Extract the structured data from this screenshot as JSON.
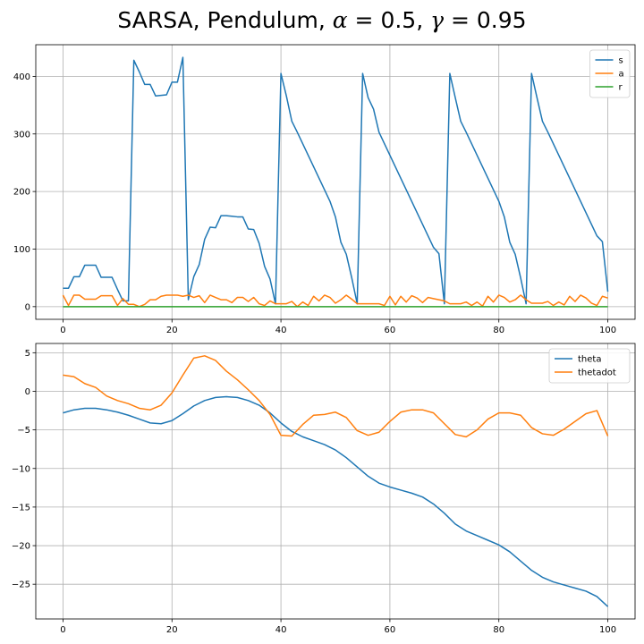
{
  "figure": {
    "title_prefix": "SARSA, Pendulum, ",
    "alpha_symbol": "α",
    "alpha_value": " = 0.5, ",
    "gamma_symbol": "γ",
    "gamma_value": " = 0.95"
  },
  "chart_data": [
    {
      "type": "line",
      "title": "",
      "xlabel": "",
      "ylabel": "",
      "xlim": [
        -5,
        105
      ],
      "ylim": [
        -22,
        455
      ],
      "xticks": [
        0,
        20,
        40,
        60,
        80,
        100
      ],
      "yticks": [
        0,
        100,
        200,
        300,
        400
      ],
      "grid": true,
      "legend_position": "top-right",
      "x": [
        0,
        1,
        2,
        3,
        4,
        5,
        6,
        7,
        8,
        9,
        10,
        11,
        12,
        13,
        14,
        15,
        16,
        17,
        18,
        19,
        20,
        21,
        22,
        23,
        24,
        25,
        26,
        27,
        28,
        29,
        30,
        31,
        32,
        33,
        34,
        35,
        36,
        37,
        38,
        39,
        40,
        41,
        42,
        43,
        44,
        45,
        46,
        47,
        48,
        49,
        50,
        51,
        52,
        53,
        54,
        55,
        56,
        57,
        58,
        59,
        60,
        61,
        62,
        63,
        64,
        65,
        66,
        67,
        68,
        69,
        70,
        71,
        72,
        73,
        74,
        75,
        76,
        77,
        78,
        79,
        80,
        81,
        82,
        83,
        84,
        85,
        86,
        87,
        88,
        89,
        90,
        91,
        92,
        93,
        94,
        95,
        96,
        97,
        98,
        99,
        100
      ],
      "series": [
        {
          "name": "s",
          "color": "#1f77b4",
          "values": [
            32,
            32,
            52,
            52,
            72,
            72,
            72,
            51,
            51,
            51,
            30,
            10,
            10,
            428,
            408,
            386,
            386,
            366,
            367,
            368,
            390,
            390,
            433,
            12,
            52,
            73,
            117,
            138,
            137,
            158,
            158,
            157,
            156,
            156,
            135,
            134,
            110,
            70,
            48,
            5,
            405,
            366,
            322,
            303,
            283,
            263,
            243,
            223,
            203,
            183,
            156,
            112,
            91,
            50,
            5,
            405,
            363,
            343,
            303,
            283,
            263,
            243,
            223,
            203,
            183,
            163,
            143,
            123,
            103,
            92,
            5,
            405,
            363,
            322,
            303,
            283,
            263,
            243,
            223,
            203,
            183,
            156,
            112,
            91,
            50,
            5,
            405,
            363,
            322,
            303,
            283,
            263,
            243,
            223,
            203,
            183,
            163,
            143,
            123,
            113,
            26
          ]
        },
        {
          "name": "a",
          "color": "#ff7f0e",
          "values": [
            20,
            2,
            20,
            20,
            13,
            13,
            13,
            19,
            19,
            19,
            2,
            14,
            4,
            4,
            0,
            4,
            12,
            12,
            18,
            20,
            20,
            20,
            18,
            20,
            16,
            19,
            7,
            20,
            16,
            12,
            12,
            7,
            16,
            16,
            9,
            16,
            5,
            2,
            10,
            5,
            5,
            5,
            9,
            0,
            8,
            2,
            18,
            10,
            20,
            16,
            6,
            12,
            20,
            13,
            5,
            5,
            5,
            5,
            5,
            2,
            18,
            3,
            18,
            8,
            19,
            15,
            7,
            16,
            14,
            12,
            10,
            5,
            5,
            5,
            8,
            2,
            8,
            1,
            18,
            8,
            20,
            16,
            8,
            12,
            20,
            12,
            6,
            6,
            6,
            9,
            2,
            8,
            3,
            18,
            9,
            20,
            15,
            6,
            2,
            18,
            15
          ]
        },
        {
          "name": "r",
          "color": "#2ca02c",
          "values": [
            0,
            0,
            0,
            0,
            0,
            0,
            0,
            0,
            0,
            0,
            0,
            0,
            0,
            0,
            0,
            0,
            0,
            0,
            0,
            0,
            0,
            0,
            0,
            0,
            0,
            0,
            0,
            0,
            0,
            0,
            0,
            0,
            0,
            0,
            0,
            0,
            0,
            0,
            0,
            0,
            0,
            0,
            0,
            0,
            0,
            0,
            0,
            0,
            0,
            0,
            0,
            0,
            0,
            0,
            0,
            0,
            0,
            0,
            0,
            0,
            0,
            0,
            0,
            0,
            0,
            0,
            0,
            0,
            0,
            0,
            0,
            0,
            0,
            0,
            0,
            0,
            0,
            0,
            0,
            0,
            0,
            0,
            0,
            0,
            0,
            0,
            0,
            0,
            0,
            0,
            0,
            0,
            0,
            0,
            0,
            0,
            0,
            0,
            0,
            0,
            0
          ]
        }
      ]
    },
    {
      "type": "line",
      "title": "",
      "xlabel": "",
      "ylabel": "",
      "xlim": [
        -5,
        105
      ],
      "ylim": [
        -29.5,
        6.2
      ],
      "xticks": [
        0,
        20,
        40,
        60,
        80,
        100
      ],
      "yticks": [
        5,
        0,
        -5,
        -10,
        -15,
        -20,
        -25
      ],
      "grid": true,
      "legend_position": "top-right",
      "x": [
        0,
        2,
        4,
        6,
        8,
        10,
        12,
        14,
        16,
        18,
        20,
        22,
        24,
        26,
        28,
        30,
        32,
        34,
        36,
        38,
        40,
        42,
        44,
        46,
        48,
        50,
        52,
        54,
        56,
        58,
        60,
        62,
        64,
        66,
        68,
        70,
        72,
        74,
        76,
        78,
        80,
        82,
        84,
        86,
        88,
        90,
        92,
        94,
        96,
        98,
        100
      ],
      "series": [
        {
          "name": "theta",
          "color": "#1f77b4",
          "values": [
            -2.8,
            -2.4,
            -2.2,
            -2.2,
            -2.4,
            -2.7,
            -3.1,
            -3.6,
            -4.1,
            -4.2,
            -3.8,
            -2.9,
            -1.9,
            -1.2,
            -0.8,
            -0.7,
            -0.8,
            -1.2,
            -1.8,
            -2.8,
            -4.1,
            -5.2,
            -5.9,
            -6.4,
            -6.9,
            -7.6,
            -8.6,
            -9.8,
            -11,
            -11.9,
            -12.4,
            -12.8,
            -13.2,
            -13.7,
            -14.6,
            -15.8,
            -17.2,
            -18.1,
            -18.7,
            -19.3,
            -19.9,
            -20.8,
            -22,
            -23.2,
            -24.1,
            -24.7,
            -25.1,
            -25.5,
            -25.9,
            -26.6,
            -27.9
          ]
        },
        {
          "name": "thetadot",
          "color": "#ff7f0e",
          "values": [
            2.1,
            1.9,
            1.0,
            0.5,
            -0.6,
            -1.2,
            -1.6,
            -2.2,
            -2.4,
            -1.8,
            -0.2,
            2.1,
            4.3,
            4.6,
            4.0,
            2.6,
            1.5,
            0.2,
            -1.2,
            -3.0,
            -5.7,
            -5.8,
            -4.3,
            -3.1,
            -3.0,
            -2.7,
            -3.4,
            -5.1,
            -5.7,
            -5.3,
            -3.9,
            -2.7,
            -2.4,
            -2.4,
            -2.8,
            -4.2,
            -5.6,
            -5.9,
            -5.0,
            -3.6,
            -2.8,
            -2.8,
            -3.1,
            -4.7,
            -5.5,
            -5.7,
            -4.9,
            -3.9,
            -2.9,
            -2.5,
            -5.8
          ]
        }
      ]
    }
  ]
}
